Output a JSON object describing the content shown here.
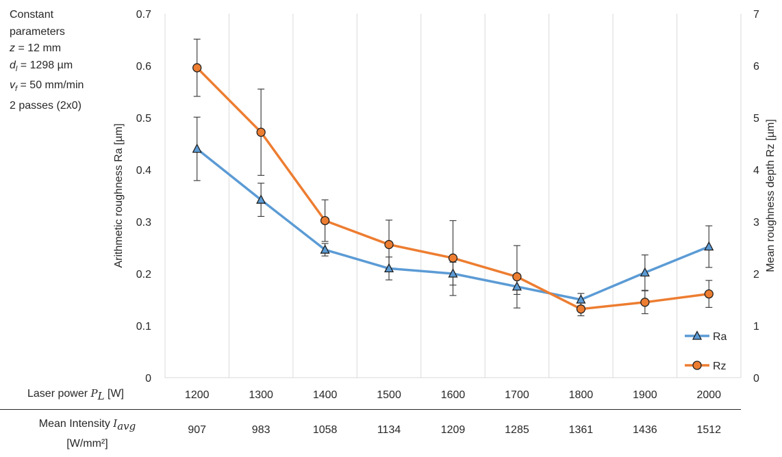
{
  "params": {
    "title": "Constant parameters",
    "lines": [
      {
        "var": "z",
        "sub": "",
        "text": " = 12 mm"
      },
      {
        "var": "d",
        "sub": "l",
        "text": " = 1298 µm"
      },
      {
        "var": "v",
        "sub": "f",
        "text": " = 50 mm/min"
      },
      {
        "var": "",
        "sub": "",
        "text": "2 passes (2x0)"
      }
    ]
  },
  "rows": {
    "power_label_text": "Laser power ",
    "power_symbol": "P",
    "power_symbol_sub": "L",
    "power_unit": " [W]",
    "intensity_label_text": "Mean Intensity ",
    "intensity_symbol": "I",
    "intensity_symbol_sub": "avg",
    "intensity_unit": "[W/mm²]",
    "intensity_values": [
      "907",
      "983",
      "1058",
      "1134",
      "1209",
      "1285",
      "1361",
      "1436",
      "1512"
    ]
  },
  "colors": {
    "ra": "#5b9bd5",
    "rz": "#ed7d31",
    "grid": "#d9d9d9",
    "text": "#262626",
    "error": "#404040"
  },
  "chart_data": {
    "type": "line",
    "categories": [
      "1200",
      "1300",
      "1400",
      "1500",
      "1600",
      "1700",
      "1800",
      "1900",
      "2000"
    ],
    "ylabel": "Arithmetic roughness Ra [µm]",
    "y2label": "Mean roughness depth Rz [µm]",
    "ylim": [
      0,
      0.7
    ],
    "y2lim": [
      0,
      7
    ],
    "yticks": [
      "0",
      "0.1",
      "0.2",
      "0.3",
      "0.4",
      "0.5",
      "0.6",
      "0.7"
    ],
    "y2ticks": [
      "0",
      "1",
      "2",
      "3",
      "4",
      "5",
      "6",
      "7"
    ],
    "grid": "vertical",
    "legend": "bottom-right",
    "series": [
      {
        "name": "Ra",
        "axis": "left",
        "marker": "triangle",
        "values": [
          0.44,
          0.342,
          0.246,
          0.21,
          0.2,
          0.175,
          0.15,
          0.202,
          0.252
        ],
        "error": [
          0.061,
          0.032,
          0.012,
          0.022,
          0.022,
          0.015,
          0.012,
          0.034,
          0.04
        ]
      },
      {
        "name": "Rz",
        "axis": "right",
        "marker": "circle",
        "values": [
          5.96,
          4.72,
          3.02,
          2.56,
          2.3,
          1.94,
          1.32,
          1.45,
          1.61
        ],
        "error": [
          0.55,
          0.83,
          0.4,
          0.47,
          0.72,
          0.6,
          0.13,
          0.22,
          0.26
        ]
      }
    ]
  }
}
